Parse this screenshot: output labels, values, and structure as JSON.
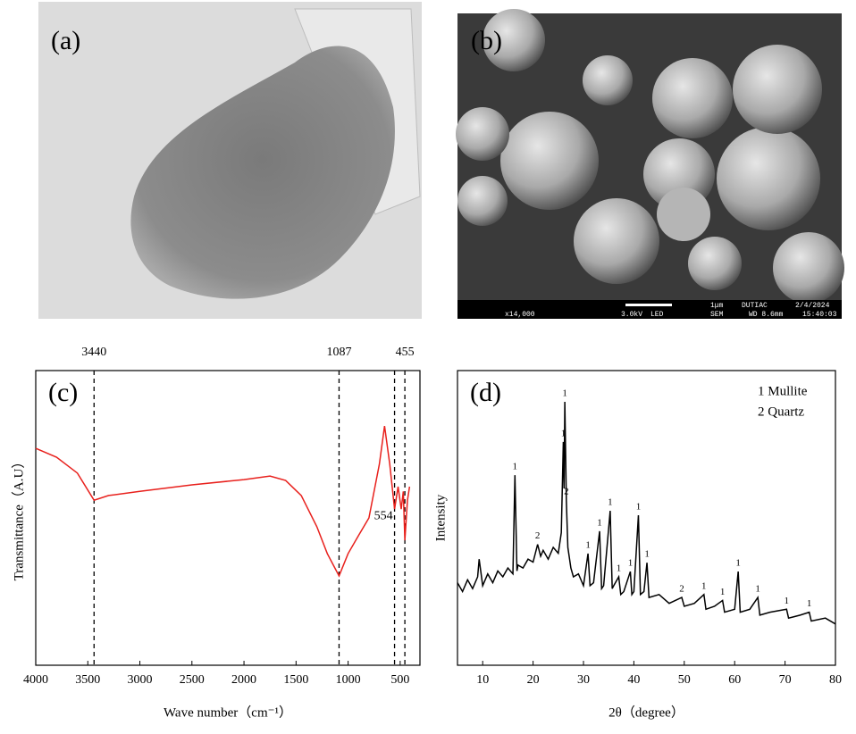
{
  "panels": {
    "a": {
      "label": "(a)"
    },
    "b": {
      "label": "(b)",
      "info_top": [
        "1μm",
        "DUTIAC",
        "2/4/2024"
      ],
      "info_bottom": [
        "x14,000",
        "3.0kV",
        "LED",
        "SEM",
        "WD 8.6mm",
        "15:40:03"
      ]
    }
  },
  "chart_data": [
    {
      "type": "line",
      "panel_label": "(c)",
      "x_label": "Wave number（cm⁻¹）",
      "y_label": "Transmittance（A.U）",
      "color": "#e8201c",
      "xlim": [
        4000,
        310
      ],
      "ylim": [
        0,
        100
      ],
      "xticks": [
        4000,
        3500,
        3000,
        2500,
        2000,
        1500,
        1000,
        500
      ],
      "reference_lines": [
        3440,
        1087,
        554,
        455
      ],
      "top_labels": [
        3440,
        1087,
        455
      ],
      "inline_labels": [
        554
      ],
      "x": [
        4000,
        3800,
        3600,
        3440,
        3300,
        3000,
        2500,
        2000,
        1750,
        1600,
        1450,
        1300,
        1200,
        1087,
        1000,
        900,
        800,
        700,
        650,
        600,
        554,
        520,
        490,
        470,
        455,
        430,
        410
      ],
      "values": [
        73.6,
        70.6,
        65.2,
        56,
        57.6,
        59,
        61.2,
        63,
        64.2,
        62.7,
        57.6,
        47,
        37.9,
        30.3,
        37.9,
        44,
        50,
        68.2,
        81.2,
        68.2,
        53,
        60.6,
        53,
        59,
        42.4,
        56,
        60.6
      ]
    },
    {
      "type": "line",
      "panel_label": "(d)",
      "x_label": "2θ（degree）",
      "y_label": "Intensity",
      "color": "#000000",
      "xlim": [
        5,
        80
      ],
      "ylim": [
        0,
        100
      ],
      "xticks": [
        10,
        20,
        30,
        40,
        50,
        60,
        70,
        80
      ],
      "legend_text": [
        "1 Mullite",
        "2 Quartz"
      ],
      "x": [
        5,
        6,
        7,
        8,
        9,
        9.3,
        10,
        11,
        12,
        13,
        14,
        15,
        16,
        16.4,
        16.8,
        17,
        18,
        19,
        20,
        20.9,
        21.5,
        22,
        23,
        24,
        25,
        25.6,
        26.0,
        26.15,
        26.3,
        26.6,
        26.9,
        27.5,
        28,
        29,
        30,
        30.9,
        31.3,
        32,
        33.2,
        33.6,
        34,
        35.3,
        35.7,
        36,
        37,
        37.4,
        38,
        39.3,
        39.6,
        40,
        40.9,
        41.3,
        42,
        42.6,
        43,
        45,
        47,
        49.5,
        50,
        52,
        53.9,
        54.3,
        56,
        57.6,
        58,
        60,
        60.7,
        61.1,
        63,
        64.6,
        65,
        67,
        70.3,
        70.7,
        73,
        74.8,
        75.2,
        78,
        80
      ],
      "values": [
        28,
        25,
        29,
        26,
        30,
        36,
        27,
        31,
        28,
        32,
        30,
        33,
        31,
        64.5,
        32,
        34,
        33,
        36,
        35,
        41,
        37,
        39,
        36,
        40,
        38,
        45,
        75.8,
        60,
        89.4,
        56,
        40,
        33,
        30,
        31,
        27,
        37.9,
        27,
        28,
        45.5,
        26,
        27,
        52.4,
        26,
        27,
        30,
        24,
        25,
        31.8,
        24,
        25,
        50.9,
        24,
        25,
        34.8,
        23,
        24,
        21,
        23,
        20,
        21,
        24,
        19,
        20,
        22,
        18,
        19,
        31.8,
        18,
        19,
        23,
        17,
        18,
        19,
        16,
        17,
        18,
        15,
        16,
        14
      ],
      "peak_labels": [
        {
          "x": 16.4,
          "label": "1"
        },
        {
          "x": 20.9,
          "label": "2"
        },
        {
          "x": 26.0,
          "label": "1"
        },
        {
          "x": 26.3,
          "label": "1"
        },
        {
          "x": 26.6,
          "label": "2"
        },
        {
          "x": 30.9,
          "label": "1"
        },
        {
          "x": 33.2,
          "label": "1"
        },
        {
          "x": 35.3,
          "label": "1"
        },
        {
          "x": 37,
          "label": "1"
        },
        {
          "x": 39.3,
          "label": "1"
        },
        {
          "x": 40.9,
          "label": "1"
        },
        {
          "x": 42.6,
          "label": "1"
        },
        {
          "x": 49.5,
          "label": "2"
        },
        {
          "x": 53.9,
          "label": "1"
        },
        {
          "x": 57.6,
          "label": "1"
        },
        {
          "x": 60.7,
          "label": "1"
        },
        {
          "x": 64.6,
          "label": "1"
        },
        {
          "x": 70.3,
          "label": "1"
        },
        {
          "x": 74.8,
          "label": "1"
        }
      ]
    }
  ]
}
